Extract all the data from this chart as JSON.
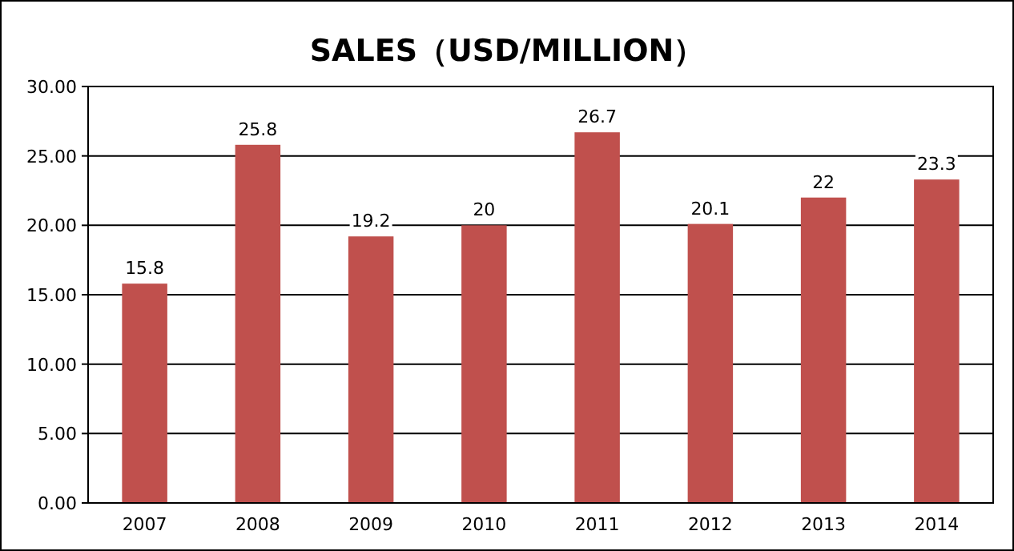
{
  "chart_data": {
    "type": "bar",
    "title": "SALES（USD/MILLION）",
    "categories": [
      "2007",
      "2008",
      "2009",
      "2010",
      "2011",
      "2012",
      "2013",
      "2014"
    ],
    "values": [
      15.8,
      25.8,
      19.2,
      20,
      26.7,
      20.1,
      22,
      23.3
    ],
    "color": "#c0504d",
    "ylim": [
      0,
      30
    ],
    "yticks": [
      {
        "value": 0,
        "label": "0.00"
      },
      {
        "value": 5,
        "label": "5.00"
      },
      {
        "value": 10,
        "label": "10.00"
      },
      {
        "value": 15,
        "label": "15.00"
      },
      {
        "value": 20,
        "label": "20.00"
      },
      {
        "value": 25,
        "label": "25.00"
      },
      {
        "value": 30,
        "label": "30.00"
      }
    ],
    "grid": "y",
    "data_labels": true
  }
}
